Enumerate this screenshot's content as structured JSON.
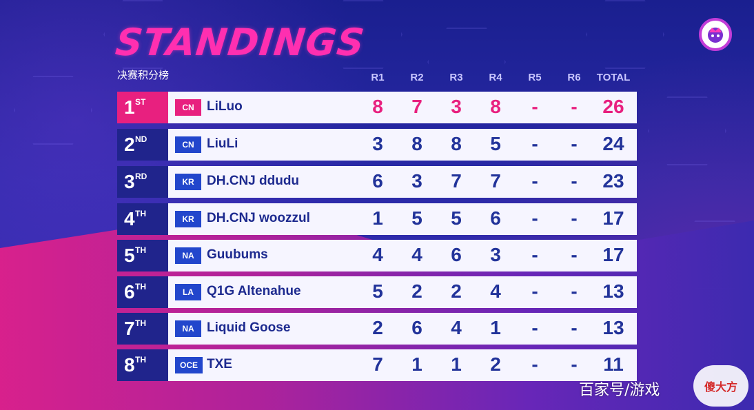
{
  "header": {
    "title": "STANDINGS",
    "subtitle": "决赛积分榜"
  },
  "columns": [
    "R1",
    "R2",
    "R3",
    "R4",
    "R5",
    "R6",
    "TOTAL"
  ],
  "rows": [
    {
      "rank": "1",
      "suffix": "ST",
      "region": "CN",
      "player": "LiLuo",
      "scores": [
        "8",
        "7",
        "3",
        "8",
        "-",
        "-"
      ],
      "total": "26"
    },
    {
      "rank": "2",
      "suffix": "ND",
      "region": "CN",
      "player": "LiuLi",
      "scores": [
        "3",
        "8",
        "8",
        "5",
        "-",
        "-"
      ],
      "total": "24"
    },
    {
      "rank": "3",
      "suffix": "RD",
      "region": "KR",
      "player": "DH.CNJ ddudu",
      "scores": [
        "6",
        "3",
        "7",
        "7",
        "-",
        "-"
      ],
      "total": "23"
    },
    {
      "rank": "4",
      "suffix": "TH",
      "region": "KR",
      "player": "DH.CNJ woozzul",
      "scores": [
        "1",
        "5",
        "5",
        "6",
        "-",
        "-"
      ],
      "total": "17"
    },
    {
      "rank": "5",
      "suffix": "TH",
      "region": "NA",
      "player": "Guubums",
      "scores": [
        "4",
        "4",
        "6",
        "3",
        "-",
        "-"
      ],
      "total": "17"
    },
    {
      "rank": "6",
      "suffix": "TH",
      "region": "LA",
      "player": "Q1G Altenahue",
      "scores": [
        "5",
        "2",
        "2",
        "4",
        "-",
        "-"
      ],
      "total": "13"
    },
    {
      "rank": "7",
      "suffix": "TH",
      "region": "NA",
      "player": "Liquid Goose",
      "scores": [
        "2",
        "6",
        "4",
        "1",
        "-",
        "-"
      ],
      "total": "13"
    },
    {
      "rank": "8",
      "suffix": "TH",
      "region": "OCE",
      "player": "TXE",
      "scores": [
        "7",
        "1",
        "1",
        "2",
        "-",
        "-"
      ],
      "total": "11"
    }
  ],
  "watermark": {
    "text": "百家号/游戏",
    "logo_text": "傻大方"
  },
  "colors": {
    "accent_pink": "#e8207f",
    "navy": "#20248c",
    "title_pink": "#ff2fb0"
  },
  "icons": {
    "event_logo": "crown-logo-icon"
  }
}
